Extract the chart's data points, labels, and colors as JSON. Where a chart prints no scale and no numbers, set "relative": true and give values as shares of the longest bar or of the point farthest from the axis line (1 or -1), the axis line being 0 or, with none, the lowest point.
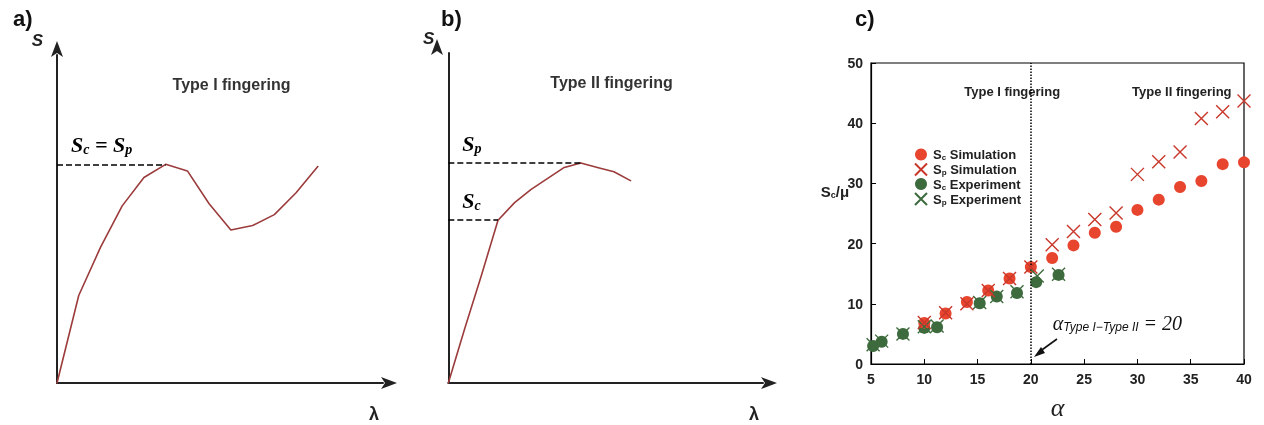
{
  "chart_data": [
    {
      "type": "line",
      "title": "a)",
      "subtitle": "Type I fingering",
      "xlabel": "λ",
      "ylabel": "S",
      "relative": true,
      "marker": "none",
      "line_style": "solid",
      "categories": [
        null,
        null,
        null,
        null,
        null,
        null,
        null,
        null,
        null,
        null,
        null,
        null,
        null,
        null,
        null,
        null
      ],
      "series": [
        {
          "color": "#9b3b3b",
          "values": [
            0,
            0.4,
            0.62,
            0.81,
            0.94,
            1,
            0.97,
            0.82,
            0.7,
            0.72,
            0.77,
            0.87,
            0.99,
            null,
            null,
            null
          ]
        }
      ],
      "ref_lines": [
        {
          "axis": "y",
          "value": 1,
          "label": "S$_{c}$ = S$_{p}$",
          "color": "#000000",
          "line_style": "dashed"
        }
      ]
    },
    {
      "type": "line",
      "title": "b)",
      "subtitle": "Type II fingering",
      "xlabel": "λ",
      "ylabel": "S",
      "relative": true,
      "marker": "none",
      "line_style": "solid",
      "categories": [
        null,
        null,
        null,
        null,
        null,
        null,
        null,
        null,
        null,
        null,
        null,
        null,
        null,
        null,
        null,
        null,
        null,
        null,
        null,
        null
      ],
      "series": [
        {
          "color": "#9b3b3b",
          "values": [
            0,
            0.25,
            0.49,
            0.74,
            0.82,
            0.88,
            0.93,
            0.98,
            1,
            0.98,
            0.96,
            0.92,
            null,
            null,
            null,
            null,
            null,
            null,
            null,
            null
          ]
        }
      ],
      "ref_lines": [
        {
          "axis": "y",
          "value": 1,
          "label": "S$_{p}$",
          "color": "#000000",
          "line_style": "dashed"
        },
        {
          "axis": "y",
          "value": 0.74,
          "label": "S$_{c}$",
          "color": "#000000",
          "line_style": "dashed"
        }
      ]
    },
    {
      "type": "scatter",
      "title": "c)",
      "xlabel": "α",
      "ylabel": "S$_{c}$/μ",
      "legend": "top left",
      "xlim": [
        5,
        40
      ],
      "xticks": [
        5,
        10,
        15,
        20,
        25,
        30,
        35,
        40
      ],
      "ylim": [
        0,
        50
      ],
      "yticks": [
        0,
        10,
        20,
        30,
        40,
        50
      ],
      "series": [
        {
          "name": "S$_{c}$ Simulation",
          "color": "#e8452f",
          "marker": "circle",
          "x": [
            10,
            12,
            14,
            16,
            18,
            20,
            22,
            24,
            26,
            28,
            30,
            32,
            34,
            36,
            38,
            40
          ],
          "values": [
            6.8,
            8.4,
            10.3,
            12.2,
            14.2,
            16.1,
            17.6,
            19.7,
            21.8,
            22.8,
            25.6,
            27.3,
            29.4,
            30.4,
            33.2,
            33.5
          ]
        },
        {
          "name": "S$_{p}$ Simulation",
          "color": "#c8372a",
          "marker": "cross",
          "x": [
            10,
            12,
            14,
            16,
            18,
            20,
            22,
            24,
            26,
            28,
            30,
            32,
            34,
            36,
            38,
            40
          ],
          "values": [
            6.9,
            8.5,
            10,
            12.2,
            14.2,
            16.1,
            19.8,
            22,
            24,
            25.1,
            31.5,
            33.6,
            35.2,
            40.8,
            41.9,
            43.7
          ]
        },
        {
          "name": "S$_{c}$ Experiment",
          "color": "#3d6b3d",
          "marker": "circle",
          "x": [
            5.2,
            6,
            8,
            10,
            11.2,
            15.2,
            16.8,
            18.7,
            20.5,
            22.6
          ],
          "values": [
            3,
            3.7,
            5,
            6,
            6.1,
            10.1,
            11.2,
            11.8,
            13.6,
            14.8
          ]
        },
        {
          "name": "S$_{p}$ Experiment",
          "color": "#3d6b3d",
          "marker": "cross",
          "x": [
            5.2,
            6,
            8,
            10,
            11.2,
            15.2,
            16.8,
            18.7,
            20.6,
            22.6
          ],
          "values": [
            3.2,
            3.8,
            5,
            6.2,
            6.3,
            10.2,
            11.2,
            12,
            14.6,
            14.9
          ]
        }
      ],
      "ref_lines": [
        {
          "axis": "x",
          "value": 20,
          "color": "#000000",
          "line_style": "dotted"
        }
      ],
      "annotations": [
        "Type I fingering",
        "Type II fingering",
        {
          "text": "α$_{Type I−Type II}$ = 20",
          "x": 20,
          "y": 0
        }
      ]
    }
  ]
}
